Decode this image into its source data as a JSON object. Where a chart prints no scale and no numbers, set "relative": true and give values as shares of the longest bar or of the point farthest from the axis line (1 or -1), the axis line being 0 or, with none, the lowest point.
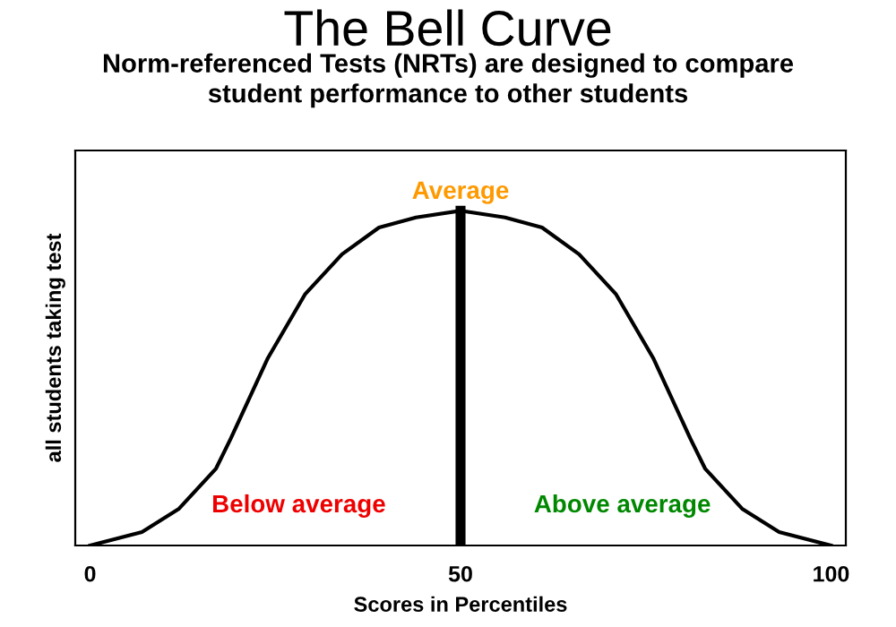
{
  "chart_data": {
    "type": "line",
    "title": "The Bell Curve",
    "subtitle": "Norm-referenced Tests (NRTs) are designed to compare\nstudent performance to other students",
    "xlabel": "Scores in Percentiles",
    "ylabel": "all students taking test",
    "relative": true,
    "x": [
      0,
      7,
      12,
      17,
      19,
      24,
      29,
      34,
      39,
      44,
      50,
      56,
      61,
      66,
      71,
      76,
      81,
      83,
      88,
      93,
      100
    ],
    "series": [
      {
        "color": "#000000",
        "values": [
          0,
          0.04,
          0.11,
          0.23,
          0.32,
          0.56,
          0.75,
          0.87,
          0.95,
          0.98,
          1,
          0.98,
          0.95,
          0.87,
          0.75,
          0.56,
          0.32,
          0.23,
          0.11,
          0.04,
          0
        ]
      }
    ],
    "xlim": [
      -2,
      102
    ],
    "xticks": [
      0,
      50,
      100
    ],
    "ref_lines": [
      {
        "axis": "x",
        "value": 50,
        "label": "Average",
        "color": "#000000"
      }
    ],
    "annotations": [
      "Below average",
      "Above average"
    ],
    "grid": false,
    "legend": false,
    "tick_labels": "x"
  }
}
